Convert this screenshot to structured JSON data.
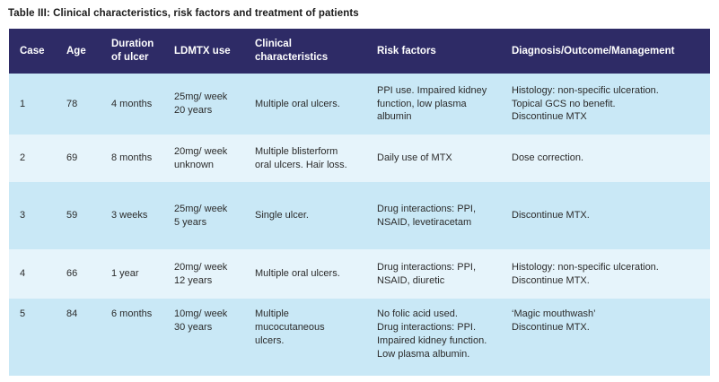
{
  "title": "Table III: Clinical characteristics, risk factors and treatment of patients",
  "colors": {
    "header_bg": "#2e2b66",
    "header_text": "#ffffff",
    "row_odd_bg": "#c9e8f6",
    "row_even_bg": "#e6f4fb",
    "body_text": "#2b2b2b",
    "title_text": "#1a1a1a",
    "page_bg": "#ffffff"
  },
  "table": {
    "columns": [
      "Case",
      "Age",
      "Duration\nof ulcer",
      "LDMTX use",
      "Clinical\ncharacteristics",
      "Risk factors",
      "Diagnosis/Outcome/Management"
    ],
    "rows": [
      {
        "case": "1",
        "age": "78",
        "duration": "4 months",
        "ldmtx": "25mg/ week\n20 years",
        "clinical": "Multiple oral ulcers.",
        "risk": "PPI use. Impaired kidney\nfunction, low plasma\nalbumin",
        "diagnosis": "Histology: non-specific ulceration.\nTopical GCS no benefit.\nDiscontinue MTX"
      },
      {
        "case": "2",
        "age": "69",
        "duration": "8 months",
        "ldmtx": "20mg/ week\nunknown",
        "clinical": "Multiple blisterform\noral ulcers. Hair loss.",
        "risk": "Daily use of MTX",
        "diagnosis": "Dose correction."
      },
      {
        "case": "3",
        "age": "59",
        "duration": "3 weeks",
        "ldmtx": "25mg/ week\n5 years",
        "clinical": "Single ulcer.",
        "risk": "Drug interactions: PPI,\nNSAID, levetiracetam",
        "diagnosis": "Discontinue MTX."
      },
      {
        "case": "4",
        "age": "66",
        "duration": "1 year",
        "ldmtx": "20mg/ week\n12 years",
        "clinical": "Multiple oral ulcers.",
        "risk": "Drug interactions: PPI,\nNSAID, diuretic",
        "diagnosis": "Histology: non-specific ulceration.\nDiscontinue MTX."
      },
      {
        "case": "5",
        "age": "84",
        "duration": "6 months",
        "ldmtx": "10mg/ week\n30 years",
        "clinical": "Multiple\nmucocutaneous\nulcers.",
        "risk": "No folic acid used.\nDrug interactions: PPI.\nImpaired kidney function.\nLow plasma albumin.",
        "diagnosis": "‘Magic mouthwash’\nDiscontinue MTX."
      }
    ]
  }
}
